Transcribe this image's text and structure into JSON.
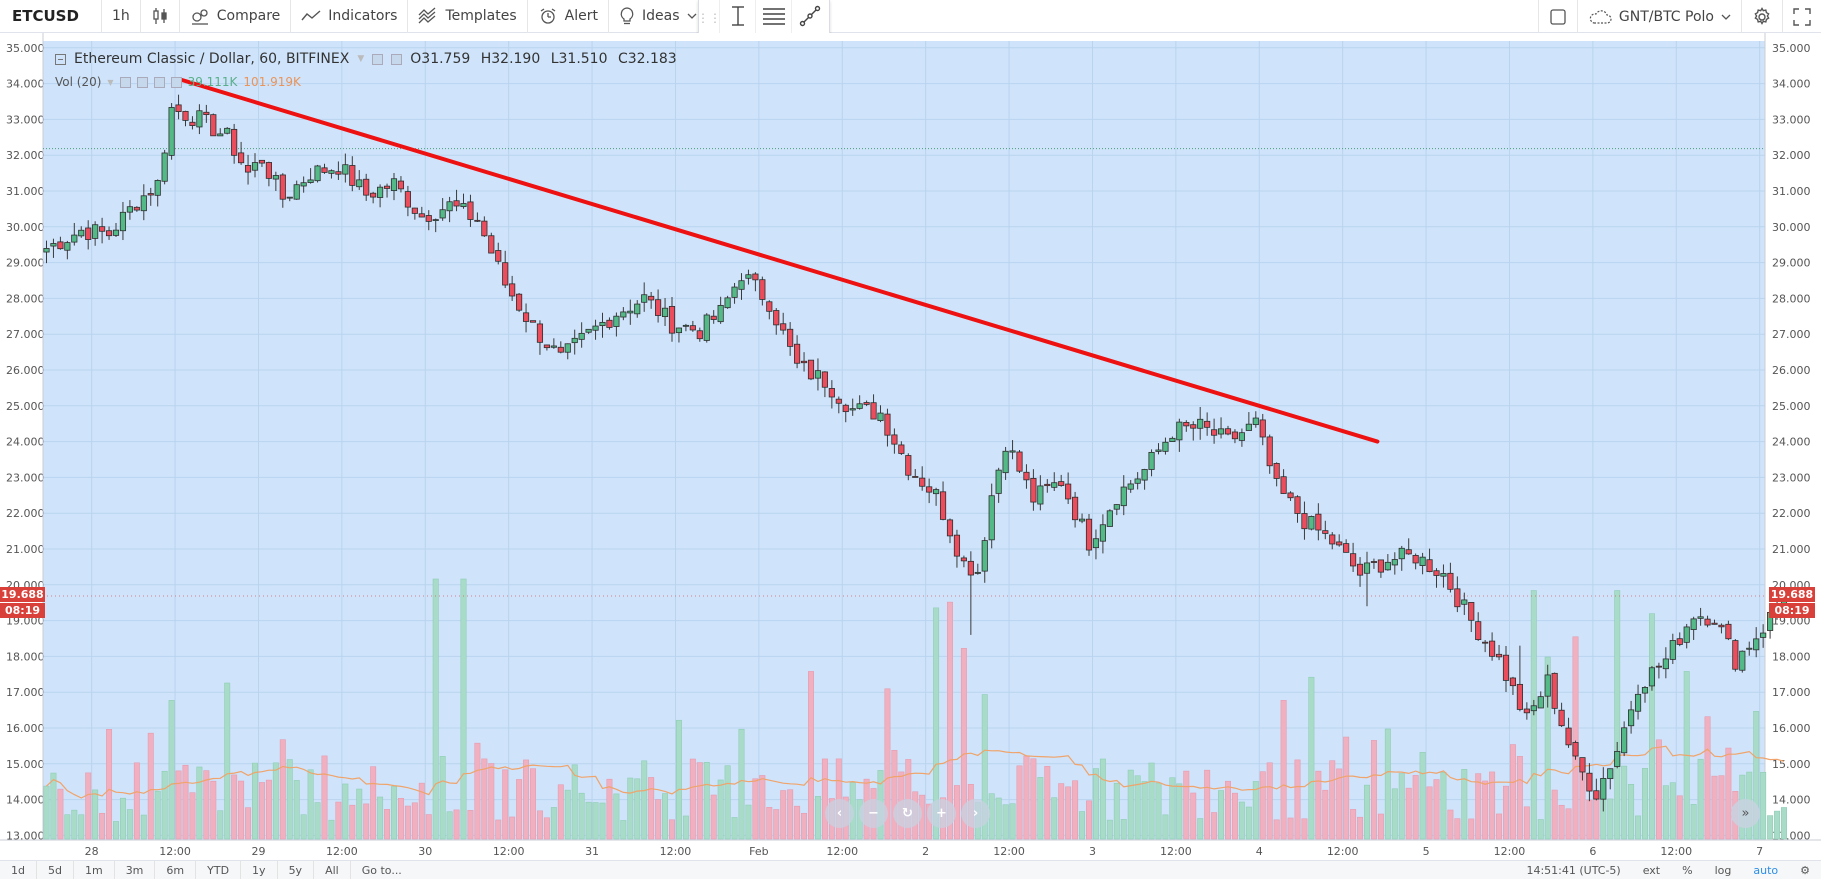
{
  "toolbar": {
    "symbol": "ETCUSD",
    "interval": "1h",
    "compare": "Compare",
    "indicators": "Indicators",
    "templates": "Templates",
    "alert": "Alert",
    "ideas": "Ideas",
    "watchlist": "GNT/BTC Polo"
  },
  "legend": {
    "title": "Ethereum Classic / Dollar, 60, BITFINEX",
    "open": "O31.759",
    "high": "H32.190",
    "low": "L31.510",
    "close": "C32.183",
    "vol_label": "Vol (20)",
    "vol_value": "39.111K",
    "vol_ma": "101.919K"
  },
  "price_badge": {
    "price": "19.688",
    "countdown": "08:19"
  },
  "bottom": {
    "ranges": [
      "1d",
      "5d",
      "1m",
      "3m",
      "6m",
      "YTD",
      "1y",
      "5y",
      "All",
      "Go to..."
    ],
    "time": "14:51:41 (UTC-5)",
    "ext": "ext",
    "percent": "%",
    "log": "log",
    "auto": "auto"
  },
  "colors": {
    "background": "#cfe4fb",
    "up": "#53b987",
    "down": "#eb4d5c",
    "trendline": "#ee1111",
    "volume_ma": "#f0a36a"
  },
  "chart_data": {
    "type": "candlestick",
    "y_ticks": [
      "35.000",
      "34.000",
      "33.000",
      "32.000",
      "31.000",
      "30.000",
      "29.000",
      "28.000",
      "27.000",
      "26.000",
      "25.000",
      "24.000",
      "23.000",
      "22.000",
      "21.000",
      "20.000",
      "19.000",
      "18.000",
      "17.000",
      "16.000",
      "15.000",
      "14.000",
      "13.000"
    ],
    "ylim": [
      12.9,
      35.05
    ],
    "x_ticks": [
      {
        "label": "28",
        "t": 6.5
      },
      {
        "label": "12:00",
        "t": 18.5
      },
      {
        "label": "29",
        "t": 30.5
      },
      {
        "label": "12:00",
        "t": 42.5
      },
      {
        "label": "30",
        "t": 54.5
      },
      {
        "label": "12:00",
        "t": 66.5
      },
      {
        "label": "31",
        "t": 78.5
      },
      {
        "label": "12:00",
        "t": 90.5
      },
      {
        "label": "Feb",
        "t": 102.5
      },
      {
        "label": "12:00",
        "t": 114.5
      },
      {
        "label": "2",
        "t": 126.5
      },
      {
        "label": "12:00",
        "t": 138.5
      },
      {
        "label": "3",
        "t": 150.5
      },
      {
        "label": "12:00",
        "t": 162.5
      },
      {
        "label": "4",
        "t": 174.5
      },
      {
        "label": "12:00",
        "t": 186.5
      },
      {
        "label": "5",
        "t": 198.5
      },
      {
        "label": "12:00",
        "t": 210.5
      },
      {
        "label": "6",
        "t": 222.5
      },
      {
        "label": "12:00",
        "t": 234.5
      },
      {
        "label": "7",
        "t": 246.5
      }
    ],
    "price_anchors": [
      [
        0,
        29.4
      ],
      [
        5,
        29.9
      ],
      [
        9,
        29.8
      ],
      [
        13,
        30.7
      ],
      [
        16,
        31.2
      ],
      [
        18,
        33.3
      ],
      [
        22,
        33.0
      ],
      [
        26,
        32.5
      ],
      [
        29,
        31.5
      ],
      [
        31,
        31.9
      ],
      [
        34,
        30.8
      ],
      [
        38,
        31.5
      ],
      [
        42,
        31.7
      ],
      [
        46,
        30.9
      ],
      [
        50,
        31.2
      ],
      [
        54,
        30.3
      ],
      [
        58,
        30.6
      ],
      [
        62,
        30.2
      ],
      [
        66,
        28.4
      ],
      [
        70,
        27.2
      ],
      [
        74,
        26.3
      ],
      [
        78,
        27.0
      ],
      [
        82,
        27.6
      ],
      [
        86,
        28.0
      ],
      [
        90,
        27.3
      ],
      [
        94,
        27.1
      ],
      [
        97,
        27.6
      ],
      [
        100,
        28.7
      ],
      [
        104,
        27.9
      ],
      [
        108,
        26.1
      ],
      [
        112,
        25.7
      ],
      [
        116,
        24.9
      ],
      [
        120,
        24.8
      ],
      [
        124,
        23.3
      ],
      [
        128,
        22.5
      ],
      [
        132,
        20.6
      ],
      [
        134,
        20.4
      ],
      [
        136,
        22.5
      ],
      [
        138,
        24.0
      ],
      [
        142,
        22.4
      ],
      [
        146,
        22.9
      ],
      [
        150,
        21.2
      ],
      [
        154,
        22.5
      ],
      [
        158,
        23.2
      ],
      [
        162,
        24.3
      ],
      [
        166,
        24.4
      ],
      [
        170,
        24.0
      ],
      [
        174,
        24.5
      ],
      [
        177,
        22.7
      ],
      [
        181,
        21.8
      ],
      [
        185,
        21.2
      ],
      [
        189,
        20.3
      ],
      [
        193,
        20.7
      ],
      [
        197,
        20.8
      ],
      [
        201,
        20.3
      ],
      [
        205,
        19.0
      ],
      [
        209,
        17.9
      ],
      [
        213,
        16.2
      ],
      [
        216,
        17.3
      ],
      [
        220,
        15.0
      ],
      [
        223,
        14.2
      ],
      [
        226,
        15.4
      ],
      [
        229,
        17.2
      ],
      [
        233,
        17.9
      ],
      [
        237,
        19.2
      ],
      [
        240,
        19.1
      ],
      [
        243,
        17.9
      ],
      [
        247,
        18.8
      ],
      [
        250,
        19.7
      ]
    ],
    "trendline": [
      [
        19.5,
        34.1
      ],
      [
        191.5,
        24.0
      ]
    ],
    "current_price": 19.688,
    "last_close_line": 32.183,
    "volume_scale_max": 90000,
    "volume_ma_level": 101919
  }
}
